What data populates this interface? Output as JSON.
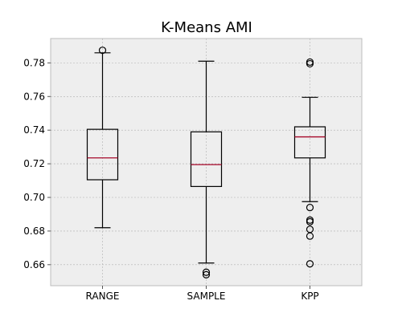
{
  "chart_data": {
    "type": "box",
    "title": "K-Means AMI",
    "xlabel": "",
    "ylabel": "",
    "categories": [
      "RANGE",
      "SAMPLE",
      "KPP"
    ],
    "ylim": [
      0.6475,
      0.7945
    ],
    "yticks": [
      0.66,
      0.68,
      0.7,
      0.72,
      0.74,
      0.76,
      0.78
    ],
    "ytick_labels": [
      "0.66",
      "0.68",
      "0.70",
      "0.72",
      "0.74",
      "0.76",
      "0.78"
    ],
    "grid": true,
    "boxes": [
      {
        "name": "RANGE",
        "whisker_low": 0.682,
        "q1": 0.7105,
        "median": 0.7235,
        "q3": 0.7405,
        "whisker_high": 0.786,
        "fliers": [
          0.7875
        ]
      },
      {
        "name": "SAMPLE",
        "whisker_low": 0.661,
        "q1": 0.7065,
        "median": 0.7195,
        "q3": 0.739,
        "whisker_high": 0.781,
        "fliers": [
          0.6555,
          0.654
        ]
      },
      {
        "name": "KPP",
        "whisker_low": 0.6975,
        "q1": 0.7235,
        "median": 0.736,
        "q3": 0.742,
        "whisker_high": 0.7595,
        "fliers": [
          0.7805,
          0.7795,
          0.694,
          0.6865,
          0.6855,
          0.681,
          0.677,
          0.6605
        ]
      }
    ],
    "colors": {
      "plot_background": "#eeeeee",
      "grid": "#b0b0b0",
      "box": "#000000",
      "median": "#a60628",
      "axis": "#bcbcbc"
    }
  }
}
